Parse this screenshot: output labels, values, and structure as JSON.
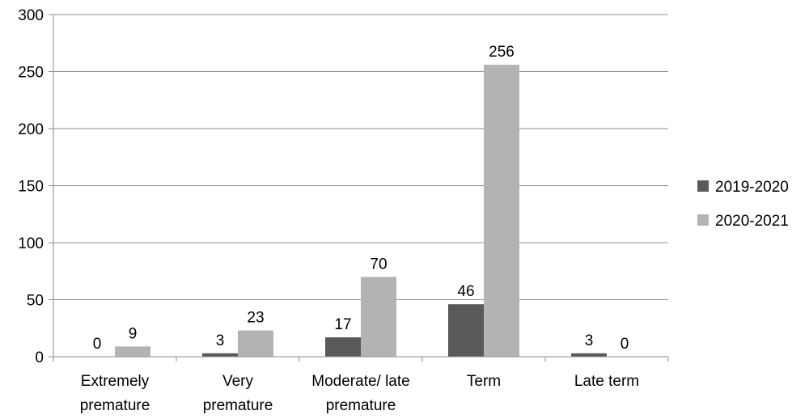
{
  "chart_data": {
    "type": "bar",
    "categories": [
      [
        "Extremely",
        "premature"
      ],
      [
        "Very",
        "premature"
      ],
      [
        "Moderate/ late",
        "premature"
      ],
      [
        "Term"
      ],
      [
        "Late term"
      ]
    ],
    "series": [
      {
        "name": "2019-2020",
        "values": [
          0,
          3,
          17,
          46,
          3
        ],
        "color": "#595959"
      },
      {
        "name": "2020-2021",
        "values": [
          9,
          23,
          70,
          256,
          0
        ],
        "color": "#b3b3b3"
      }
    ],
    "yticks": [
      0,
      50,
      100,
      150,
      200,
      250,
      300
    ],
    "ylim": [
      0,
      300
    ],
    "grid": true,
    "legend": "right",
    "title": "",
    "xlabel": "",
    "ylabel": ""
  }
}
